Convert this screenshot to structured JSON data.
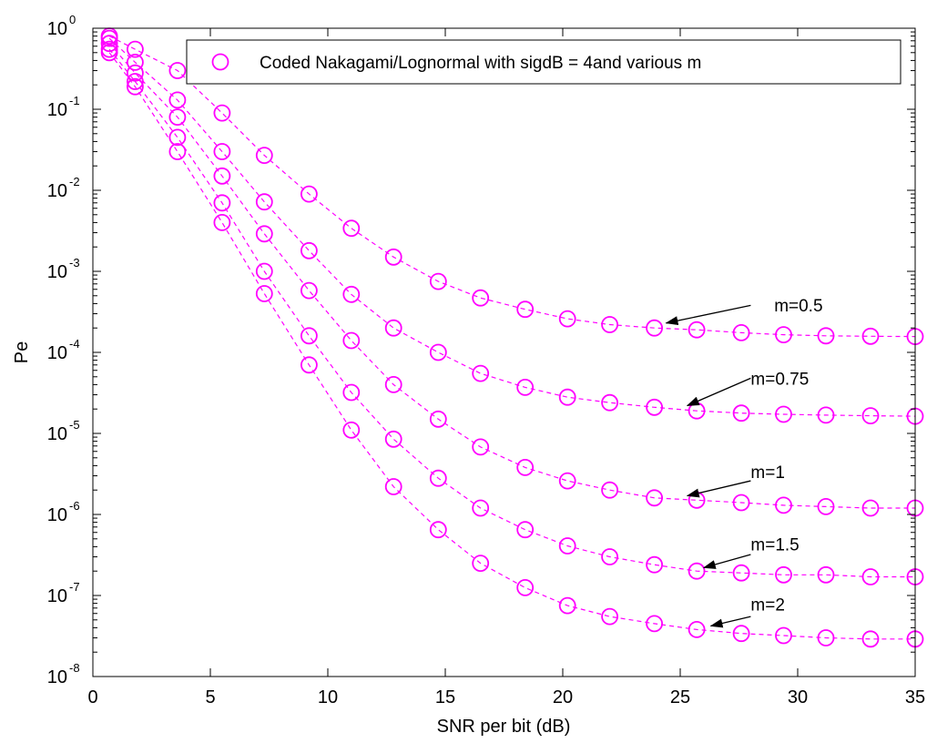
{
  "chart_data": {
    "type": "line",
    "title": "",
    "xlabel": "SNR per bit (dB)",
    "ylabel": "Pe",
    "xlim": [
      0,
      35
    ],
    "ylim": [
      1e-08,
      1
    ],
    "yscale": "log",
    "xticks": [
      "0",
      "5",
      "10",
      "15",
      "20",
      "25",
      "30",
      "35"
    ],
    "yticks": [
      {
        "base": "10",
        "exp": "-8",
        "value": 1e-08
      },
      {
        "base": "10",
        "exp": "-7",
        "value": 1e-07
      },
      {
        "base": "10",
        "exp": "-6",
        "value": 1e-06
      },
      {
        "base": "10",
        "exp": "-5",
        "value": 1e-05
      },
      {
        "base": "10",
        "exp": "-4",
        "value": 0.0001
      },
      {
        "base": "10",
        "exp": "-3",
        "value": 0.001
      },
      {
        "base": "10",
        "exp": "-2",
        "value": 0.01
      },
      {
        "base": "10",
        "exp": "-1",
        "value": 0.1
      },
      {
        "base": "10",
        "exp": "0",
        "value": 1
      }
    ],
    "grid": false,
    "line_color": "#ff00ff",
    "marker": "circle",
    "line_style": "dashed",
    "legend": {
      "entry": "Coded Nakagami/Lognormal with sigdB = 4and various m",
      "position": "top-right"
    },
    "x": [
      0.7,
      1.8,
      3.6,
      5.5,
      7.3,
      9.2,
      11.0,
      12.8,
      14.7,
      16.5,
      18.4,
      20.2,
      22.0,
      23.9,
      25.7,
      27.6,
      29.4,
      31.2,
      33.1,
      35.0
    ],
    "series": [
      {
        "values": [
          0.8,
          0.55,
          0.3,
          0.09,
          0.027,
          0.009,
          0.0034,
          0.0015,
          0.00075,
          0.00047,
          0.00034,
          0.00026,
          0.00022,
          0.0002,
          0.00019,
          0.000175,
          0.000165,
          0.00016,
          0.000158,
          0.000157
        ]
      },
      {
        "values": [
          0.75,
          0.38,
          0.13,
          0.03,
          0.0072,
          0.0018,
          0.00052,
          0.0002,
          0.0001,
          5.5e-05,
          3.7e-05,
          2.8e-05,
          2.4e-05,
          2.1e-05,
          1.9e-05,
          1.78e-05,
          1.72e-05,
          1.68e-05,
          1.65e-05,
          1.63e-05
        ]
      },
      {
        "values": [
          0.65,
          0.28,
          0.08,
          0.015,
          0.0029,
          0.00058,
          0.00014,
          4e-05,
          1.5e-05,
          6.8e-06,
          3.8e-06,
          2.6e-06,
          2e-06,
          1.6e-06,
          1.5e-06,
          1.4e-06,
          1.3e-06,
          1.25e-06,
          1.2e-06,
          1.2e-06
        ]
      },
      {
        "values": [
          0.55,
          0.22,
          0.045,
          0.007,
          0.001,
          0.00016,
          3.2e-05,
          8.5e-06,
          2.8e-06,
          1.2e-06,
          6.5e-07,
          4.1e-07,
          3e-07,
          2.4e-07,
          2e-07,
          1.9e-07,
          1.8e-07,
          1.8e-07,
          1.7e-07,
          1.7e-07
        ]
      },
      {
        "values": [
          0.5,
          0.19,
          0.03,
          0.004,
          0.00053,
          7e-05,
          1.1e-05,
          2.2e-06,
          6.5e-07,
          2.5e-07,
          1.25e-07,
          7.5e-08,
          5.5e-08,
          4.5e-08,
          3.8e-08,
          3.4e-08,
          3.2e-08,
          3e-08,
          2.9e-08,
          2.9e-08
        ]
      }
    ],
    "annotations": [
      {
        "text": "m=0.5",
        "text_x": 29.0,
        "text_y": 0.00032,
        "arrow_tail_x": 28.0,
        "arrow_tail_y": 0.00038,
        "arrow_head_x": 24.4,
        "arrow_head_y": 0.00023
      },
      {
        "text": "m=0.75",
        "text_x": 28.0,
        "text_y": 4e-05,
        "arrow_tail_x": 28.0,
        "arrow_tail_y": 4.8e-05,
        "arrow_head_x": 25.3,
        "arrow_head_y": 2.2e-05
      },
      {
        "text": "m=1",
        "text_x": 28.0,
        "text_y": 2.8e-06,
        "arrow_tail_x": 28.0,
        "arrow_tail_y": 2.6e-06,
        "arrow_head_x": 25.3,
        "arrow_head_y": 1.7e-06
      },
      {
        "text": "m=1.5",
        "text_x": 28.0,
        "text_y": 3.6e-07,
        "arrow_tail_x": 28.0,
        "arrow_tail_y": 3.2e-07,
        "arrow_head_x": 26.0,
        "arrow_head_y": 2.2e-07
      },
      {
        "text": "m=2",
        "text_x": 28.0,
        "text_y": 6.5e-08,
        "arrow_tail_x": 28.0,
        "arrow_tail_y": 5.5e-08,
        "arrow_head_x": 26.3,
        "arrow_head_y": 4.2e-08
      }
    ]
  }
}
